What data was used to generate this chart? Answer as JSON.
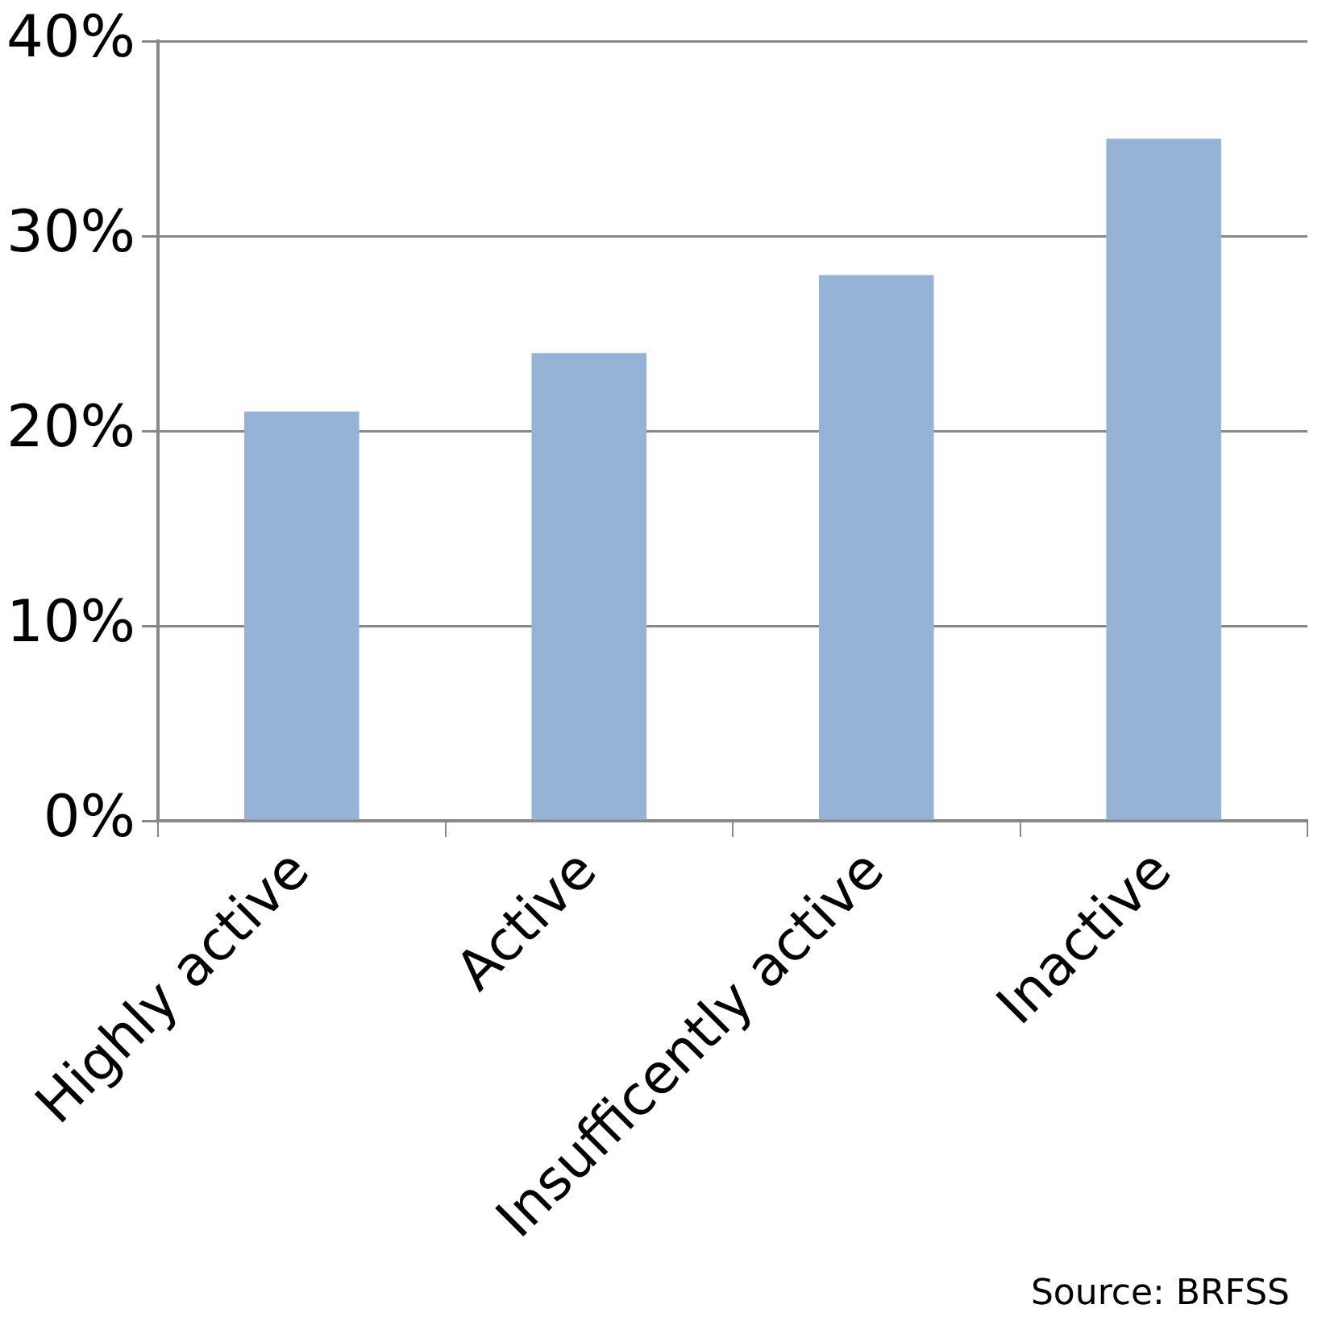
{
  "chart_data": {
    "type": "bar",
    "categories": [
      "Highly active",
      "Active",
      "Insufficently active",
      "Inactive"
    ],
    "values": [
      21,
      24,
      28,
      35
    ],
    "color": "#95b3d7",
    "ylim": [
      0,
      40
    ],
    "yticks": [
      {
        "value": 0,
        "label": "0%"
      },
      {
        "value": 10,
        "label": "10%"
      },
      {
        "value": 20,
        "label": "20%"
      },
      {
        "value": 30,
        "label": "30%"
      },
      {
        "value": 40,
        "label": "40%"
      }
    ],
    "grid": "y",
    "legend": false,
    "annotations": [
      "Source: BRFSS"
    ]
  }
}
